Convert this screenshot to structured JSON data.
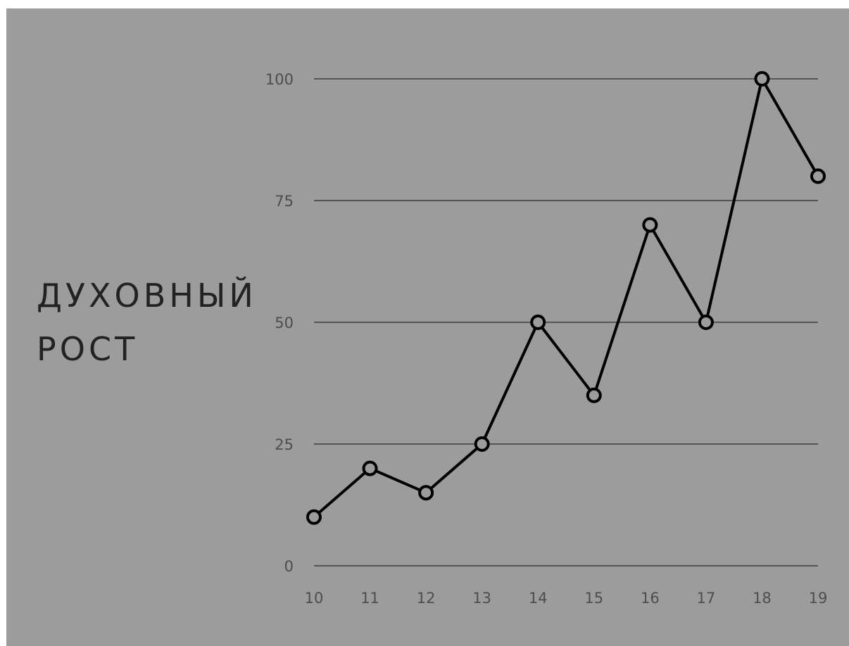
{
  "chart_data": {
    "type": "line",
    "ylabel_lines": [
      "ДУХОВНЫЙ",
      "РОСТ"
    ],
    "xlabel": "",
    "x": [
      10,
      11,
      12,
      13,
      14,
      15,
      16,
      17,
      18,
      19
    ],
    "x_tick_labels": [
      "10",
      "11",
      "12",
      "13",
      "14",
      "15",
      "16",
      "17",
      "18",
      "19"
    ],
    "y_tick_labels": [
      "0",
      "25",
      "50",
      "75",
      "100"
    ],
    "y_ticks": [
      0,
      25,
      50,
      75,
      100
    ],
    "ylim": [
      0,
      100
    ],
    "series": [
      {
        "values": [
          10,
          20,
          15,
          25,
          50,
          35,
          70,
          50,
          100,
          80
        ]
      }
    ],
    "grid": "horizontal",
    "legend": "none",
    "colors": {
      "background": "#9c9c9c",
      "line": "#000000",
      "gridline": "#555555",
      "marker_fill": "#9c9c9c"
    }
  }
}
